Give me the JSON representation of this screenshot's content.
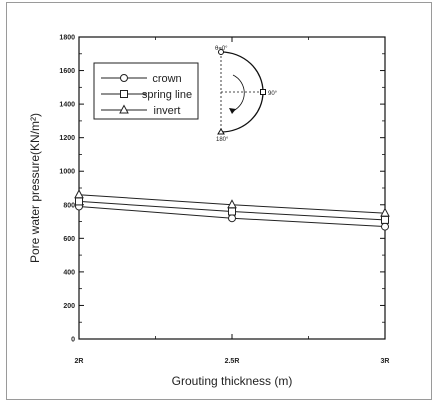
{
  "chart_data": {
    "type": "line",
    "categories": [
      "2R",
      "2.5R",
      "3R"
    ],
    "x": [
      2,
      2.5,
      3
    ],
    "series": [
      {
        "name": "crown",
        "marker": "circle",
        "values": [
          790,
          720,
          670
        ]
      },
      {
        "name": "spring line",
        "marker": "square",
        "values": [
          820,
          760,
          710
        ]
      },
      {
        "name": "invert",
        "marker": "triangle",
        "values": [
          860,
          800,
          750
        ]
      }
    ],
    "xlabel": "Grouting thickness (m)",
    "ylabel": "Pore water pressure(KN/m²)",
    "ylim": [
      0,
      1800
    ],
    "yticks": [
      0,
      200,
      400,
      600,
      800,
      1000,
      1200,
      1400,
      1600,
      1800
    ],
    "xlim": [
      2,
      3
    ],
    "grid": false,
    "legend_position": "top-left"
  },
  "inset": {
    "label_top": "θ=0°",
    "label_right": "90°",
    "label_bottom": "180°"
  },
  "colors": {
    "axis": "#111111",
    "series": "#222222",
    "marker_fill": "#ffffff"
  }
}
